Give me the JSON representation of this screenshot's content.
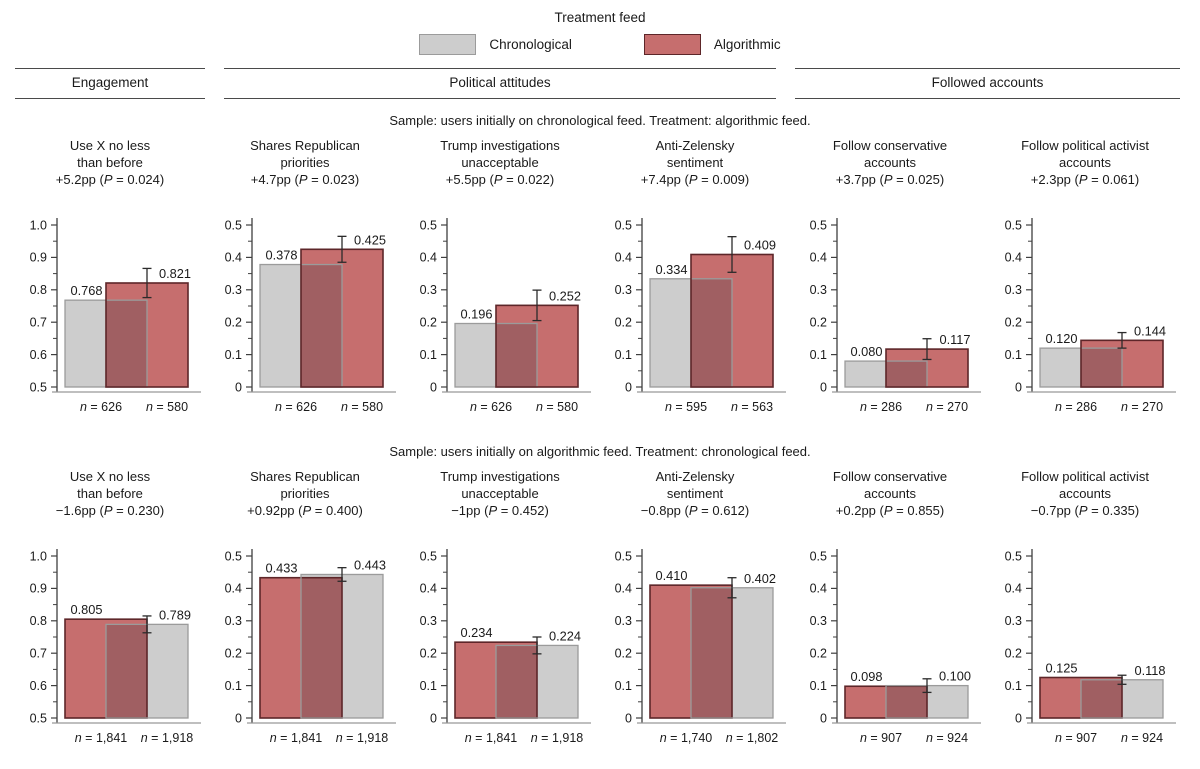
{
  "legend": {
    "title": "Treatment feed",
    "items": [
      {
        "label": "Chronological",
        "group": "chronological"
      },
      {
        "label": "Algorithmic",
        "group": "algorithmic"
      }
    ]
  },
  "sections": [
    {
      "label": "Engagement"
    },
    {
      "label": "Political attitudes"
    },
    {
      "label": "Followed accounts"
    }
  ],
  "colors": {
    "chronological": {
      "fill": "#cdcdcd",
      "border": "#9b9b9b"
    },
    "algorithmic": {
      "fill": "#c66e6e",
      "border": "#5d2629"
    },
    "overlap": "#a05f62",
    "axis": "#3f3f3f",
    "frame": "#999999",
    "error": "#2b2b2b",
    "text": "#1a1a1a"
  },
  "chart_data": {
    "type": "bar",
    "rows": [
      {
        "caption": "Sample: users initially on chronological feed. Treatment: algorithmic feed.",
        "panels": [
          {
            "title": [
              "Use X no less",
              "than before"
            ],
            "effect": "+5.2pp (P = 0.024)",
            "ymin": 0.5,
            "ymax": 1.0,
            "yticks": [
              "0.5",
              "0.6",
              "0.7",
              "0.8",
              "0.9",
              "1.0"
            ],
            "bars": [
              {
                "group": "chronological",
                "value": 0.768,
                "label": "0.768",
                "n": "n = 626"
              },
              {
                "group": "algorithmic",
                "value": 0.821,
                "label": "0.821",
                "n": "n = 580"
              }
            ],
            "error": {
              "low": 0.776,
              "high": 0.866
            }
          },
          {
            "title": [
              "Shares Republican",
              "priorities"
            ],
            "effect": "+4.7pp (P = 0.023)",
            "ymin": 0,
            "ymax": 0.5,
            "yticks": [
              "0",
              "0.1",
              "0.2",
              "0.3",
              "0.4",
              "0.5"
            ],
            "bars": [
              {
                "group": "chronological",
                "value": 0.378,
                "label": "0.378",
                "n": "n = 626"
              },
              {
                "group": "algorithmic",
                "value": 0.425,
                "label": "0.425",
                "n": "n = 580"
              }
            ],
            "error": {
              "low": 0.385,
              "high": 0.465
            }
          },
          {
            "title": [
              "Trump investigations",
              "unacceptable"
            ],
            "effect": "+5.5pp (P = 0.022)",
            "ymin": 0,
            "ymax": 0.5,
            "yticks": [
              "0",
              "0.1",
              "0.2",
              "0.3",
              "0.4",
              "0.5"
            ],
            "bars": [
              {
                "group": "chronological",
                "value": 0.196,
                "label": "0.196",
                "n": "n = 626"
              },
              {
                "group": "algorithmic",
                "value": 0.252,
                "label": "0.252",
                "n": "n = 580"
              }
            ],
            "error": {
              "low": 0.205,
              "high": 0.299
            }
          },
          {
            "title": [
              "Anti-Zelensky",
              "sentiment"
            ],
            "effect": "+7.4pp (P = 0.009)",
            "ymin": 0,
            "ymax": 0.5,
            "yticks": [
              "0",
              "0.1",
              "0.2",
              "0.3",
              "0.4",
              "0.5"
            ],
            "bars": [
              {
                "group": "chronological",
                "value": 0.334,
                "label": "0.334",
                "n": "n = 595"
              },
              {
                "group": "algorithmic",
                "value": 0.409,
                "label": "0.409",
                "n": "n = 563"
              }
            ],
            "error": {
              "low": 0.354,
              "high": 0.464
            }
          },
          {
            "title": [
              "Follow conservative",
              "accounts"
            ],
            "effect": "+3.7pp (P = 0.025)",
            "ymin": 0,
            "ymax": 0.5,
            "yticks": [
              "0",
              "0.1",
              "0.2",
              "0.3",
              "0.4",
              "0.5"
            ],
            "bars": [
              {
                "group": "chronological",
                "value": 0.08,
                "label": "0.080",
                "n": "n = 286"
              },
              {
                "group": "algorithmic",
                "value": 0.117,
                "label": "0.117",
                "n": "n = 270"
              }
            ],
            "error": {
              "low": 0.085,
              "high": 0.149
            }
          },
          {
            "title": [
              "Follow political activist",
              "accounts"
            ],
            "effect": "+2.3pp (P = 0.061)",
            "ymin": 0,
            "ymax": 0.5,
            "yticks": [
              "0",
              "0.1",
              "0.2",
              "0.3",
              "0.4",
              "0.5"
            ],
            "bars": [
              {
                "group": "chronological",
                "value": 0.12,
                "label": "0.120",
                "n": "n = 286"
              },
              {
                "group": "algorithmic",
                "value": 0.144,
                "label": "0.144",
                "n": "n = 270"
              }
            ],
            "error": {
              "low": 0.12,
              "high": 0.168
            }
          }
        ]
      },
      {
        "caption": "Sample: users initially on algorithmic feed. Treatment: chronological feed.",
        "panels": [
          {
            "title": [
              "Use X no less",
              "than before"
            ],
            "effect": "−1.6pp (P = 0.230)",
            "ymin": 0.5,
            "ymax": 1.0,
            "yticks": [
              "0.5",
              "0.6",
              "0.7",
              "0.8",
              "0.9",
              "1.0"
            ],
            "bars": [
              {
                "group": "algorithmic",
                "value": 0.805,
                "label": "0.805",
                "n": "n = 1,841"
              },
              {
                "group": "chronological",
                "value": 0.789,
                "label": "0.789",
                "n": "n = 1,918"
              }
            ],
            "error": {
              "low": 0.763,
              "high": 0.815
            }
          },
          {
            "title": [
              "Shares Republican",
              "priorities"
            ],
            "effect": "+0.92pp (P = 0.400)",
            "ymin": 0,
            "ymax": 0.5,
            "yticks": [
              "0",
              "0.1",
              "0.2",
              "0.3",
              "0.4",
              "0.5"
            ],
            "bars": [
              {
                "group": "algorithmic",
                "value": 0.433,
                "label": "0.433",
                "n": "n = 1,841"
              },
              {
                "group": "chronological",
                "value": 0.443,
                "label": "0.443",
                "n": "n = 1,918"
              }
            ],
            "error": {
              "low": 0.422,
              "high": 0.464
            }
          },
          {
            "title": [
              "Trump investigations",
              "unacceptable"
            ],
            "effect": "−1pp (P = 0.452)",
            "ymin": 0,
            "ymax": 0.5,
            "yticks": [
              "0",
              "0.1",
              "0.2",
              "0.3",
              "0.4",
              "0.5"
            ],
            "bars": [
              {
                "group": "algorithmic",
                "value": 0.234,
                "label": "0.234",
                "n": "n = 1,841"
              },
              {
                "group": "chronological",
                "value": 0.224,
                "label": "0.224",
                "n": "n = 1,918"
              }
            ],
            "error": {
              "low": 0.198,
              "high": 0.25
            }
          },
          {
            "title": [
              "Anti-Zelensky",
              "sentiment"
            ],
            "effect": "−0.8pp (P = 0.612)",
            "ymin": 0,
            "ymax": 0.5,
            "yticks": [
              "0",
              "0.1",
              "0.2",
              "0.3",
              "0.4",
              "0.5"
            ],
            "bars": [
              {
                "group": "algorithmic",
                "value": 0.41,
                "label": "0.410",
                "n": "n = 1,740"
              },
              {
                "group": "chronological",
                "value": 0.402,
                "label": "0.402",
                "n": "n = 1,802"
              }
            ],
            "error": {
              "low": 0.371,
              "high": 0.433
            }
          },
          {
            "title": [
              "Follow conservative",
              "accounts"
            ],
            "effect": "+0.2pp (P = 0.855)",
            "ymin": 0,
            "ymax": 0.5,
            "yticks": [
              "0",
              "0.1",
              "0.2",
              "0.3",
              "0.4",
              "0.5"
            ],
            "bars": [
              {
                "group": "algorithmic",
                "value": 0.098,
                "label": "0.098",
                "n": "n = 907"
              },
              {
                "group": "chronological",
                "value": 0.1,
                "label": "0.100",
                "n": "n = 924"
              }
            ],
            "error": {
              "low": 0.079,
              "high": 0.121
            }
          },
          {
            "title": [
              "Follow political activist",
              "accounts"
            ],
            "effect": "−0.7pp (P = 0.335)",
            "ymin": 0,
            "ymax": 0.5,
            "yticks": [
              "0",
              "0.1",
              "0.2",
              "0.3",
              "0.4",
              "0.5"
            ],
            "bars": [
              {
                "group": "algorithmic",
                "value": 0.125,
                "label": "0.125",
                "n": "n = 907"
              },
              {
                "group": "chronological",
                "value": 0.118,
                "label": "0.118",
                "n": "n = 924"
              }
            ],
            "error": {
              "low": 0.104,
              "high": 0.132
            }
          }
        ]
      }
    ]
  }
}
